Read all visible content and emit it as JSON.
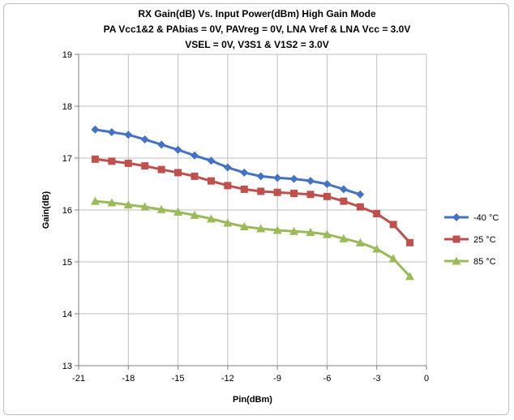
{
  "chart_data": {
    "type": "line",
    "title": [
      "RX Gain(dB)  Vs. Input Power(dBm)  High Gain Mode",
      "PA Vcc1&2 & PAbias = 0V, PAVreg = 0V,  LNA Vref & LNA Vcc = 3.0V",
      "VSEL = 0V, V3S1 & V1S2 = 3.0V"
    ],
    "xlabel": "Pin(dBm)",
    "ylabel": "Gain(dB)",
    "xlim": [
      -21,
      0
    ],
    "ylim": [
      13,
      19
    ],
    "xticks": [
      -21,
      -18,
      -15,
      -12,
      -9,
      -6,
      -3,
      0
    ],
    "yticks": [
      13,
      14,
      15,
      16,
      17,
      18,
      19
    ],
    "grid": true,
    "legend": "right",
    "series": [
      {
        "name": "-40 °C",
        "color": "#4472c4",
        "marker": "diamond",
        "x": [
          -20,
          -19,
          -18,
          -17,
          -16,
          -15,
          -14,
          -13,
          -12,
          -11,
          -10,
          -9,
          -8,
          -7,
          -6,
          -5,
          -4
        ],
        "y": [
          17.55,
          17.5,
          17.45,
          17.36,
          17.26,
          17.16,
          17.05,
          16.95,
          16.82,
          16.72,
          16.65,
          16.62,
          16.6,
          16.56,
          16.5,
          16.4,
          16.3
        ]
      },
      {
        "name": "25 °C",
        "color": "#c0504d",
        "marker": "square",
        "x": [
          -20,
          -19,
          -18,
          -17,
          -16,
          -15,
          -14,
          -13,
          -12,
          -11,
          -10,
          -9,
          -8,
          -7,
          -6,
          -5,
          -4,
          -3,
          -2,
          -1
        ],
        "y": [
          16.98,
          16.94,
          16.9,
          16.85,
          16.78,
          16.72,
          16.65,
          16.56,
          16.47,
          16.4,
          16.36,
          16.34,
          16.32,
          16.3,
          16.26,
          16.17,
          16.06,
          15.93,
          15.72,
          15.37
        ]
      },
      {
        "name": "85 °C",
        "color": "#9bbb59",
        "marker": "triangle",
        "x": [
          -20,
          -19,
          -18,
          -17,
          -16,
          -15,
          -14,
          -13,
          -12,
          -11,
          -10,
          -9,
          -8,
          -7,
          -6,
          -5,
          -4,
          -3,
          -2,
          -1
        ],
        "y": [
          16.17,
          16.14,
          16.1,
          16.06,
          16.01,
          15.96,
          15.9,
          15.83,
          15.75,
          15.68,
          15.64,
          15.61,
          15.59,
          15.57,
          15.53,
          15.45,
          15.37,
          15.25,
          15.06,
          14.72
        ]
      }
    ]
  }
}
